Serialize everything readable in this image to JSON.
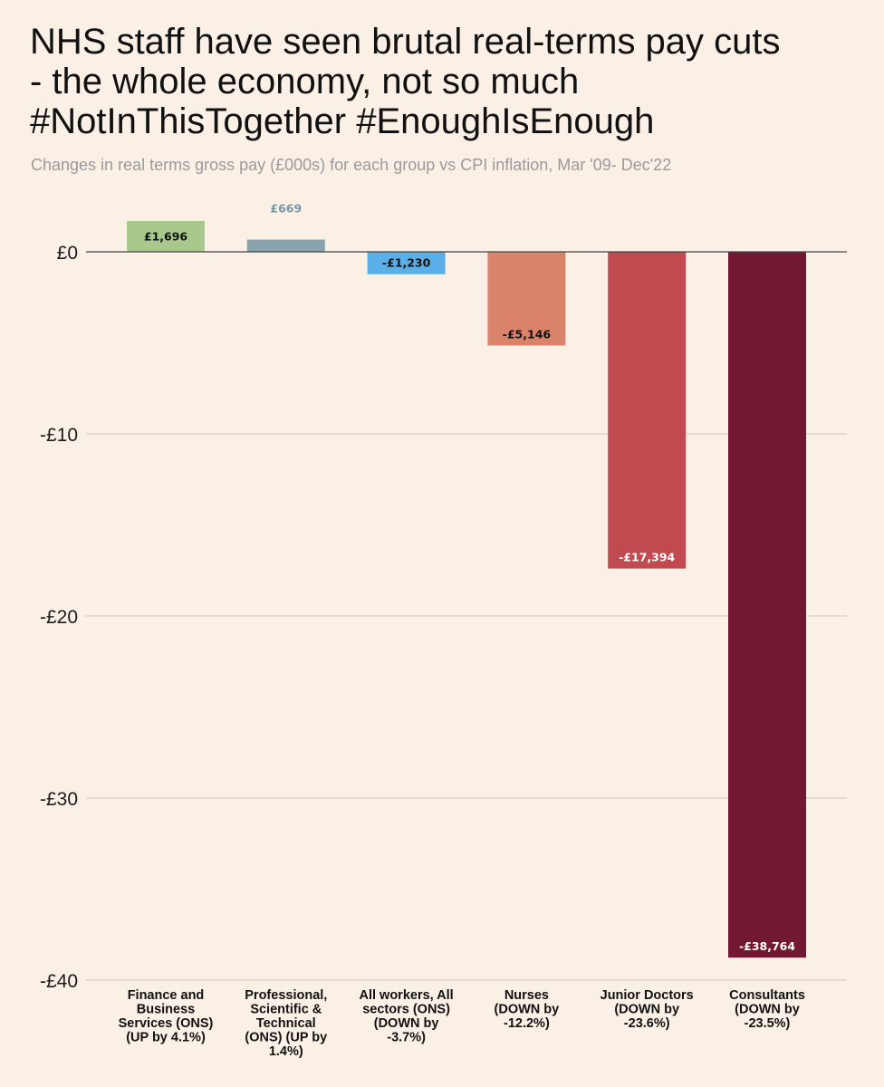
{
  "chart_data": {
    "type": "bar",
    "title": [
      "NHS staff have seen brutal real-terms pay cuts",
      "- the whole economy, not so much",
      "#NotInThisTogether #EnoughIsEnough"
    ],
    "subtitle": "Changes in real terms gross pay (£000s) for each group vs CPI inflation, Mar '09- Dec'22",
    "categories": [
      [
        "Finance and",
        "Business",
        "Services (ONS)",
        "(UP by 4.1%)"
      ],
      [
        "Professional,",
        "Scientific &",
        "Technical",
        "(ONS) (UP by",
        "1.4%)"
      ],
      [
        "All workers, All",
        "sectors (ONS)",
        "(DOWN by",
        "-3.7%)"
      ],
      [
        "Nurses",
        "(DOWN by",
        "-12.2%)"
      ],
      [
        "Junior Doctors",
        "(DOWN by",
        "-23.6%)"
      ],
      [
        "Consultants",
        "(DOWN by",
        "-23.5%)"
      ]
    ],
    "values": [
      1.696,
      0.669,
      -1.23,
      -5.146,
      -17.394,
      -38.764
    ],
    "data_labels": [
      "£1,696",
      "£669",
      "-£1,230",
      "-£5,146",
      "-£17,394",
      "-£38,764"
    ],
    "colors": [
      "#a8c88e",
      "#87a3ad",
      "#5aafe8",
      "#db836a",
      "#c04a4f",
      "#731832"
    ],
    "label_colors": [
      "#111111",
      "#7a96a3",
      "#111111",
      "#111111",
      "#ffffff",
      "#ffffff"
    ],
    "label_positions": [
      "inside",
      "above",
      "inside",
      "inside",
      "inside",
      "inside"
    ],
    "yticks": [
      0,
      -10,
      -20,
      -30,
      -40
    ],
    "ytick_labels": [
      "£0",
      "-£10",
      "-£20",
      "-£30",
      "-£40"
    ],
    "ylim": [
      -40,
      2
    ],
    "grid": true,
    "xlabel": "",
    "ylabel": ""
  }
}
